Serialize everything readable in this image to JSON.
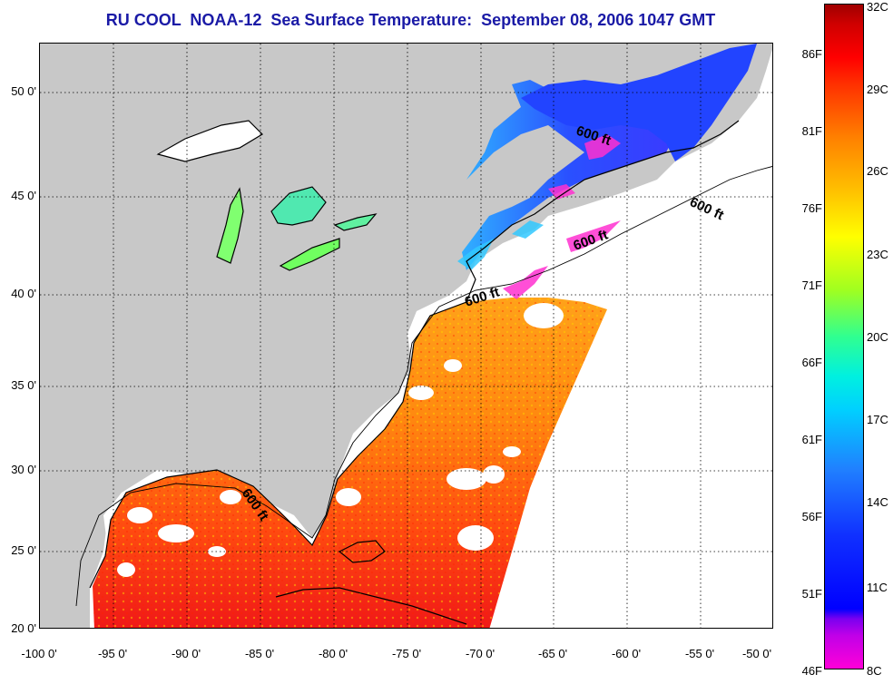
{
  "title": "RU COOL  NOAA-12  Sea Surface Temperature:  September 08, 2006 1047 GMT",
  "latitude_labels": [
    "50 0'",
    "45 0'",
    "40 0'",
    "35 0'",
    "30 0'",
    "25 0'",
    "20 0'"
  ],
  "longitude_labels": [
    "-100 0'",
    "-95 0'",
    "-90 0'",
    "-85 0'",
    "-80 0'",
    "-75 0'",
    "-70 0'",
    "-65 0'",
    "-60 0'",
    "-55 0'",
    "-50 0'"
  ],
  "colorbar": {
    "fahrenheit_labels": [
      "86F",
      "81F",
      "76F",
      "71F",
      "66F",
      "61F",
      "56F",
      "51F",
      "46F"
    ],
    "celsius_labels": [
      "32C",
      "29C",
      "26C",
      "23C",
      "20C",
      "17C",
      "14C",
      "11C",
      "8C"
    ]
  },
  "contour_labels": [
    "600 ft",
    "600 ft",
    "600 ft",
    "600 ft",
    "600 ft"
  ],
  "colors": {
    "land": "#c8c8c8",
    "cloud_mask": "#ffffff",
    "title": "#1a1aa6",
    "warm": "#ff3a10",
    "cool": "#2840ff"
  }
}
